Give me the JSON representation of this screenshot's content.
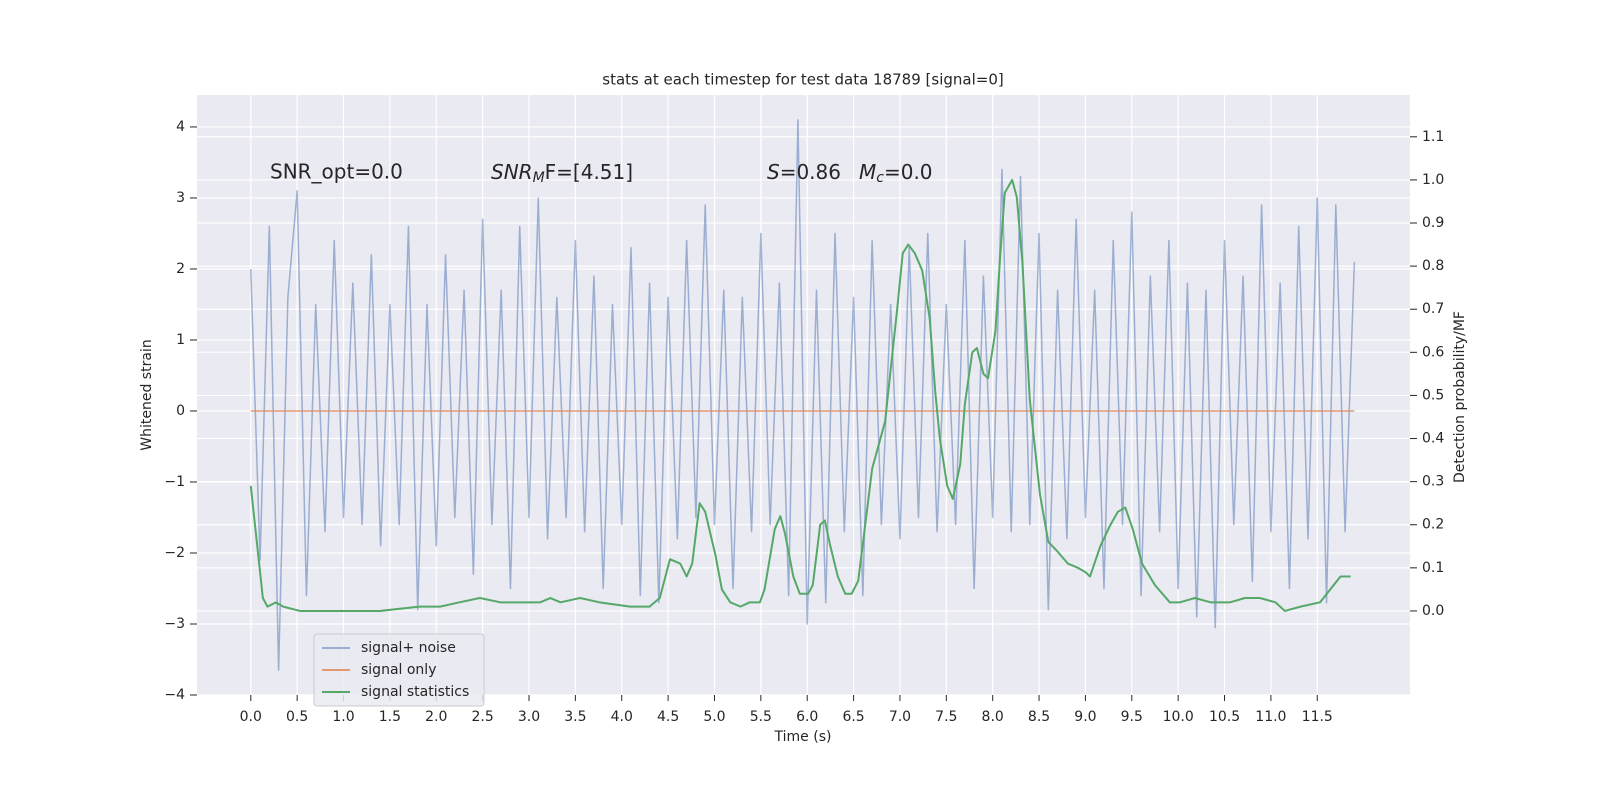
{
  "chart_data": {
    "type": "line",
    "title": "stats at each timestep for test data 18789 [signal=0]",
    "xlabel": "Time (s)",
    "ylabel": "Whitened strain",
    "y2label": "Detection probability/MF",
    "annotations": [
      {
        "text": "SNR_opt=0.0"
      },
      {
        "symbol": "SNR",
        "sub": "M",
        "text": "F=[4.51]"
      },
      {
        "symbol": "S",
        "text": "=0.86"
      },
      {
        "symbol": "M",
        "sub": "c",
        "text": "=0.0"
      }
    ],
    "grid": true,
    "legend": "lower left",
    "xlim": [
      -0.58,
      12.5
    ],
    "ylim": [
      -4.0,
      4.45
    ],
    "y2lim": [
      -0.195,
      1.197
    ],
    "xticks": [
      {
        "value": 0,
        "label": "0.0"
      },
      {
        "value": 0.5,
        "label": "0.5"
      },
      {
        "value": 1,
        "label": "1.0"
      },
      {
        "value": 1.5,
        "label": "1.5"
      },
      {
        "value": 2,
        "label": "2.0"
      },
      {
        "value": 2.5,
        "label": "2.5"
      },
      {
        "value": 3,
        "label": "3.0"
      },
      {
        "value": 3.5,
        "label": "3.5"
      },
      {
        "value": 4,
        "label": "4.0"
      },
      {
        "value": 4.5,
        "label": "4.5"
      },
      {
        "value": 5,
        "label": "5.0"
      },
      {
        "value": 5.5,
        "label": "5.5"
      },
      {
        "value": 6,
        "label": "6.0"
      },
      {
        "value": 6.5,
        "label": "6.5"
      },
      {
        "value": 7,
        "label": "7.0"
      },
      {
        "value": 7.5,
        "label": "7.5"
      },
      {
        "value": 8,
        "label": "8.0"
      },
      {
        "value": 8.5,
        "label": "8.5"
      },
      {
        "value": 9,
        "label": "9.0"
      },
      {
        "value": 9.5,
        "label": "9.5"
      },
      {
        "value": 10,
        "label": "10.0"
      },
      {
        "value": 10.5,
        "label": "10.5"
      },
      {
        "value": 11,
        "label": "11.0"
      },
      {
        "value": 11.5,
        "label": "11.5"
      }
    ],
    "yticks": [
      {
        "value": -4,
        "label": "−4"
      },
      {
        "value": -3,
        "label": "−3"
      },
      {
        "value": -2,
        "label": "−2"
      },
      {
        "value": -1,
        "label": "−1"
      },
      0,
      1,
      2,
      3,
      4
    ],
    "y2ticks": [
      {
        "value": 0,
        "label": "0.0"
      },
      {
        "value": 0.1,
        "label": "0.1"
      },
      {
        "value": 0.2,
        "label": "0.2"
      },
      {
        "value": 0.3,
        "label": "0.3"
      },
      {
        "value": 0.4,
        "label": "0.4"
      },
      {
        "value": 0.5,
        "label": "0.5"
      },
      {
        "value": 0.6,
        "label": "0.6"
      },
      {
        "value": 0.7,
        "label": "0.7"
      },
      {
        "value": 0.8,
        "label": "0.8"
      },
      {
        "value": 0.9,
        "label": "0.9"
      },
      {
        "value": 1,
        "label": "1.0"
      },
      {
        "value": 1.1,
        "label": "1.1"
      }
    ],
    "series": [
      {
        "name": "signal+ noise",
        "color": "#4c72b0",
        "opacity": 0.5,
        "x": [
          0.0,
          0.1,
          0.2,
          0.3,
          0.4,
          0.5,
          0.6,
          0.7,
          0.8,
          0.9,
          1.0,
          1.1,
          1.2,
          1.3,
          1.4,
          1.5,
          1.6,
          1.7,
          1.8,
          1.9,
          2.0,
          2.1,
          2.2,
          2.3,
          2.4,
          2.5,
          2.6,
          2.7,
          2.8,
          2.9,
          3.0,
          3.1,
          3.2,
          3.3,
          3.4,
          3.5,
          3.6,
          3.7,
          3.8,
          3.9,
          4.0,
          4.1,
          4.2,
          4.3,
          4.4,
          4.5,
          4.6,
          4.7,
          4.8,
          4.9,
          5.0,
          5.1,
          5.2,
          5.3,
          5.4,
          5.5,
          5.6,
          5.7,
          5.8,
          5.9,
          6.0,
          6.1,
          6.2,
          6.3,
          6.4,
          6.5,
          6.6,
          6.7,
          6.8,
          6.9,
          7.0,
          7.1,
          7.2,
          7.3,
          7.4,
          7.5,
          7.6,
          7.7,
          7.8,
          7.9,
          8.0,
          8.1,
          8.2,
          8.3,
          8.4,
          8.5,
          8.6,
          8.7,
          8.8,
          8.9,
          9.0,
          9.1,
          9.2,
          9.3,
          9.4,
          9.5,
          9.6,
          9.7,
          9.8,
          9.9,
          10.0,
          10.1,
          10.2,
          10.3,
          10.4,
          10.5,
          10.6,
          10.7,
          10.8,
          10.9,
          11.0,
          11.1,
          11.2,
          11.3,
          11.4,
          11.5,
          11.6,
          11.7,
          11.8,
          11.9
        ],
        "values": [
          2.0,
          -2.1,
          2.6,
          -3.65,
          1.6,
          3.1,
          -2.6,
          1.5,
          -1.7,
          2.4,
          -1.5,
          1.8,
          -1.6,
          2.2,
          -1.9,
          1.5,
          -1.6,
          2.6,
          -2.8,
          1.5,
          -1.9,
          2.2,
          -1.5,
          1.7,
          -2.3,
          2.7,
          -1.6,
          1.7,
          -2.5,
          2.6,
          -1.5,
          3.0,
          -1.8,
          1.6,
          -1.5,
          2.4,
          -1.7,
          1.9,
          -2.5,
          1.5,
          -1.6,
          2.3,
          -2.6,
          1.8,
          -2.7,
          1.6,
          -1.8,
          2.4,
          -1.5,
          2.9,
          -1.6,
          1.7,
          -2.5,
          1.6,
          -1.7,
          2.5,
          -1.6,
          1.8,
          -2.6,
          4.1,
          -3.0,
          1.7,
          -2.7,
          2.5,
          -1.7,
          1.6,
          -2.6,
          2.4,
          -1.6,
          1.5,
          -1.8,
          2.3,
          -1.5,
          2.5,
          -1.7,
          1.5,
          -1.6,
          2.4,
          -2.5,
          1.9,
          -1.5,
          3.4,
          -1.7,
          3.3,
          -1.6,
          2.5,
          -2.8,
          1.7,
          -1.8,
          2.7,
          -1.5,
          1.7,
          -2.5,
          2.4,
          -1.6,
          2.8,
          -2.6,
          1.9,
          -1.7,
          2.4,
          -2.5,
          1.8,
          -2.9,
          1.7,
          -3.05,
          2.4,
          -1.6,
          1.9,
          -2.4,
          2.9,
          -1.7,
          1.8,
          -2.5,
          2.6,
          -1.8,
          3.0,
          -2.7,
          2.9,
          -1.7,
          2.1
        ]
      },
      {
        "name": "signal only",
        "color": "#dd8452",
        "opacity": 0.8,
        "x": [
          0.0,
          11.9
        ],
        "values": [
          0,
          0
        ]
      },
      {
        "name": "signal statistics",
        "color": "#55a868",
        "opacity": 1,
        "axis": "y2",
        "x": [
          0.0,
          0.13,
          0.18,
          0.27,
          0.35,
          0.53,
          0.96,
          1.39,
          1.82,
          2.04,
          2.25,
          2.47,
          2.69,
          2.9,
          3.12,
          3.23,
          3.34,
          3.55,
          3.76,
          4.09,
          4.3,
          4.41,
          4.52,
          4.63,
          4.7,
          4.76,
          4.84,
          4.9,
          5.01,
          5.08,
          5.17,
          5.28,
          5.38,
          5.49,
          5.54,
          5.65,
          5.71,
          5.76,
          5.85,
          5.92,
          6.01,
          6.06,
          6.14,
          6.19,
          6.25,
          6.33,
          6.41,
          6.48,
          6.55,
          6.62,
          6.7,
          6.79,
          6.84,
          6.91,
          6.97,
          7.03,
          7.09,
          7.16,
          7.24,
          7.32,
          7.38,
          7.43,
          7.51,
          7.57,
          7.65,
          7.7,
          7.78,
          7.83,
          7.9,
          7.95,
          8.03,
          8.08,
          8.13,
          8.21,
          8.26,
          8.32,
          8.4,
          8.51,
          8.6,
          8.69,
          8.81,
          8.92,
          9.0,
          9.05,
          9.16,
          9.27,
          9.35,
          9.43,
          9.51,
          9.61,
          9.75,
          9.91,
          10.02,
          10.18,
          10.35,
          10.56,
          10.72,
          10.88,
          11.05,
          11.15,
          11.32,
          11.53,
          11.75,
          11.86
        ],
        "values": [
          0.29,
          0.03,
          0.01,
          0.02,
          0.01,
          0.0,
          0.0,
          0.0,
          0.01,
          0.01,
          0.02,
          0.03,
          0.02,
          0.02,
          0.02,
          0.03,
          0.02,
          0.03,
          0.02,
          0.01,
          0.01,
          0.03,
          0.12,
          0.11,
          0.08,
          0.11,
          0.25,
          0.23,
          0.13,
          0.05,
          0.02,
          0.01,
          0.02,
          0.02,
          0.05,
          0.19,
          0.22,
          0.18,
          0.08,
          0.04,
          0.04,
          0.06,
          0.2,
          0.21,
          0.15,
          0.08,
          0.04,
          0.04,
          0.07,
          0.19,
          0.33,
          0.4,
          0.44,
          0.58,
          0.7,
          0.83,
          0.85,
          0.83,
          0.79,
          0.68,
          0.51,
          0.4,
          0.29,
          0.26,
          0.34,
          0.48,
          0.6,
          0.61,
          0.55,
          0.54,
          0.65,
          0.82,
          0.97,
          1.0,
          0.96,
          0.81,
          0.49,
          0.27,
          0.16,
          0.14,
          0.11,
          0.1,
          0.09,
          0.08,
          0.15,
          0.2,
          0.23,
          0.24,
          0.19,
          0.11,
          0.06,
          0.02,
          0.02,
          0.03,
          0.02,
          0.02,
          0.03,
          0.03,
          0.02,
          0.0,
          0.01,
          0.02,
          0.08,
          0.08
        ]
      }
    ]
  }
}
